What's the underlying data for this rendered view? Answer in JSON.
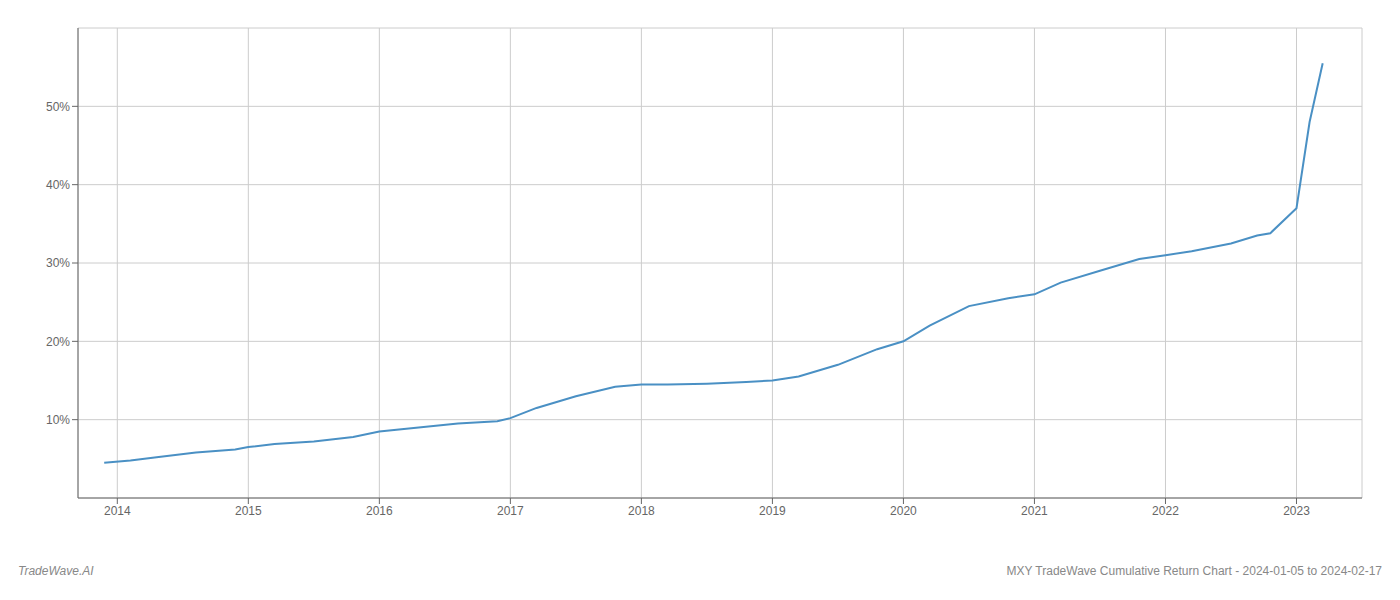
{
  "chart_data": {
    "type": "line",
    "title": "MXY TradeWave Cumulative Return Chart - 2024-01-05 to 2024-02-17",
    "annotations": [
      "TradeWave.AI"
    ],
    "x": [
      2013.9,
      2014.1,
      2014.3,
      2014.6,
      2014.9,
      2015.0,
      2015.2,
      2015.5,
      2015.8,
      2016.0,
      2016.3,
      2016.6,
      2016.9,
      2017.0,
      2017.2,
      2017.5,
      2017.8,
      2018.0,
      2018.2,
      2018.5,
      2018.8,
      2019.0,
      2019.2,
      2019.5,
      2019.8,
      2020.0,
      2020.2,
      2020.5,
      2020.8,
      2021.0,
      2021.2,
      2021.5,
      2021.8,
      2022.0,
      2022.2,
      2022.5,
      2022.7,
      2022.8,
      2023.0,
      2023.1,
      2023.2
    ],
    "values": [
      4.5,
      4.8,
      5.2,
      5.8,
      6.2,
      6.5,
      6.9,
      7.2,
      7.8,
      8.5,
      9.0,
      9.5,
      9.8,
      10.2,
      11.5,
      13.0,
      14.2,
      14.5,
      14.5,
      14.6,
      14.8,
      15.0,
      15.5,
      17.0,
      19.0,
      20.0,
      22.0,
      24.5,
      25.5,
      26.0,
      27.5,
      29.0,
      30.5,
      31.0,
      31.5,
      32.5,
      33.5,
      33.8,
      37.0,
      48.0,
      55.5
    ],
    "color": "#4a90c4",
    "xlim": [
      2013.7,
      2023.5
    ],
    "xticks": [
      2014,
      2015,
      2016,
      2017,
      2018,
      2019,
      2020,
      2021,
      2022,
      2023
    ],
    "ylim": [
      0,
      60
    ],
    "yticks": [
      {
        "value": 10,
        "label": "10%"
      },
      {
        "value": 20,
        "label": "20%"
      },
      {
        "value": 30,
        "label": "30%"
      },
      {
        "value": 40,
        "label": "40%"
      },
      {
        "value": 50,
        "label": "50%"
      }
    ],
    "grid": true
  }
}
